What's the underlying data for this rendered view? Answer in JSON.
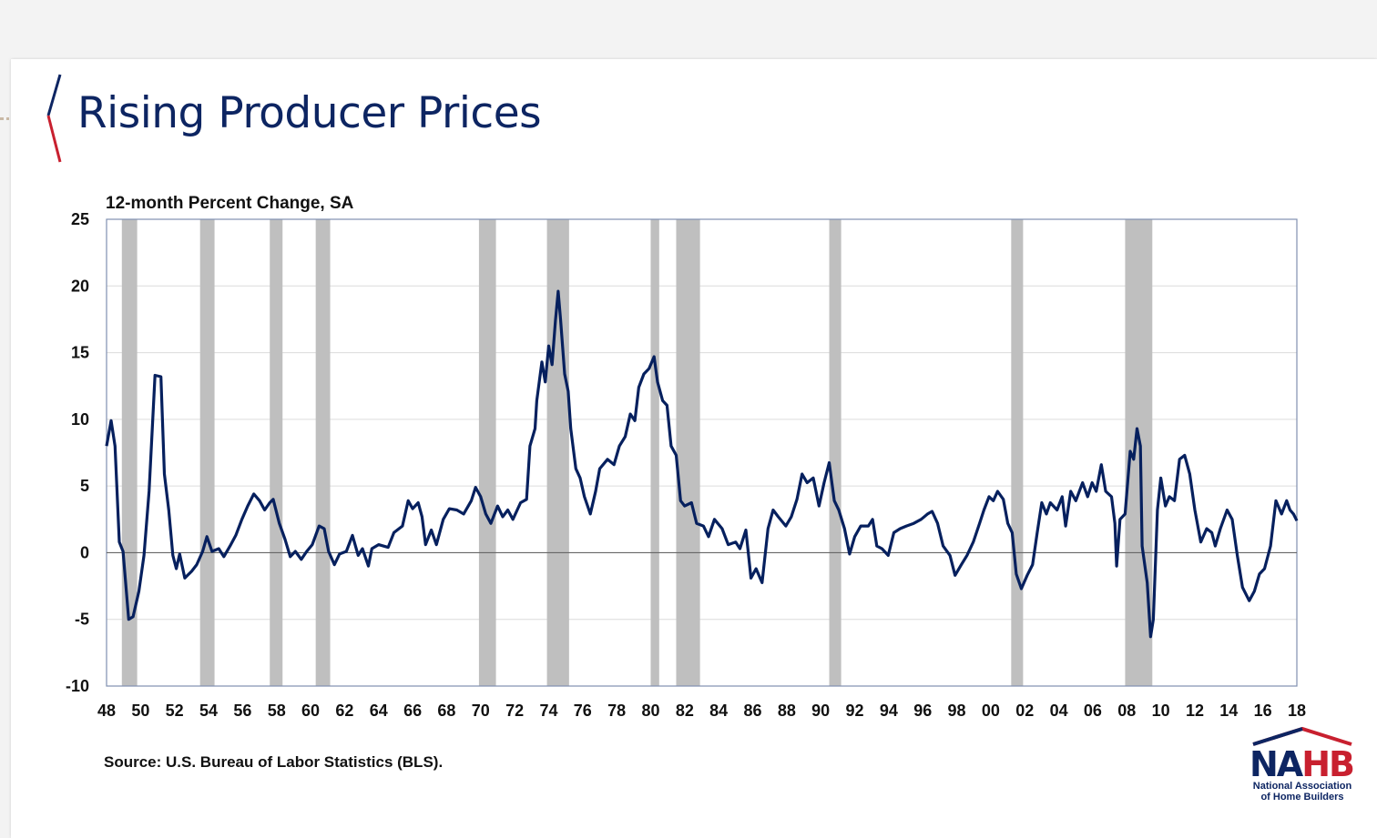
{
  "slide": {
    "title": "Rising Producer Prices",
    "source": "Source: U.S. Bureau of Labor Statistics (BLS).",
    "logo": {
      "wordmark": "NAHB",
      "name_line1": "National Association",
      "name_line2": "of Home Builders"
    }
  },
  "colors": {
    "title": "#0d2562",
    "series": "#06205e",
    "recession": "#bfbfbf",
    "accent_red": "#c8202f"
  },
  "chart_data": {
    "type": "line",
    "title": "",
    "ylabel": "12-month Percent Change, SA",
    "xlabel": "",
    "ylim": [
      -10,
      25
    ],
    "xlim": [
      1948,
      2018
    ],
    "grid": true,
    "yticks": [
      "25",
      "20",
      "15",
      "10",
      "5",
      "0",
      "-5",
      "-10"
    ],
    "ytick_values": [
      25,
      20,
      15,
      10,
      5,
      0,
      -5,
      -10
    ],
    "xticks": [
      "48",
      "50",
      "52",
      "54",
      "56",
      "58",
      "60",
      "62",
      "64",
      "66",
      "68",
      "70",
      "72",
      "74",
      "76",
      "78",
      "80",
      "82",
      "84",
      "86",
      "88",
      "90",
      "92",
      "94",
      "96",
      "98",
      "00",
      "02",
      "04",
      "06",
      "08",
      "10",
      "12",
      "14",
      "16",
      "18"
    ],
    "recession_shading": [
      [
        1948.9,
        1949.8
      ],
      [
        1953.5,
        1954.35
      ],
      [
        1957.6,
        1958.35
      ],
      [
        1960.3,
        1961.15
      ],
      [
        1969.9,
        1970.9
      ],
      [
        1973.9,
        1975.2
      ],
      [
        1980.0,
        1980.5
      ],
      [
        1981.5,
        1982.9
      ],
      [
        1990.5,
        1991.2
      ],
      [
        2001.2,
        2001.9
      ],
      [
        2007.9,
        2009.5
      ]
    ],
    "series": [
      {
        "points": [
          [
            1948.0,
            8.0
          ],
          [
            1948.27,
            9.9
          ],
          [
            1948.5,
            8.0
          ],
          [
            1948.75,
            0.8
          ],
          [
            1948.97,
            0.1
          ],
          [
            1949.3,
            -5.0
          ],
          [
            1949.56,
            -4.8
          ],
          [
            1949.9,
            -2.9
          ],
          [
            1950.2,
            -0.2
          ],
          [
            1950.5,
            4.6
          ],
          [
            1950.85,
            13.3
          ],
          [
            1951.2,
            13.2
          ],
          [
            1951.4,
            5.9
          ],
          [
            1951.66,
            3.2
          ],
          [
            1951.9,
            -0.2
          ],
          [
            1952.1,
            -1.2
          ],
          [
            1952.3,
            -0.1
          ],
          [
            1952.6,
            -1.9
          ],
          [
            1953.0,
            -1.4
          ],
          [
            1953.3,
            -0.9
          ],
          [
            1953.65,
            0.1
          ],
          [
            1953.9,
            1.2
          ],
          [
            1954.2,
            0.1
          ],
          [
            1954.6,
            0.3
          ],
          [
            1954.9,
            -0.3
          ],
          [
            1955.26,
            0.5
          ],
          [
            1955.6,
            1.3
          ],
          [
            1955.96,
            2.5
          ],
          [
            1956.3,
            3.5
          ],
          [
            1956.66,
            4.4
          ],
          [
            1957.0,
            3.9
          ],
          [
            1957.3,
            3.2
          ],
          [
            1957.6,
            3.75
          ],
          [
            1957.8,
            4.0
          ],
          [
            1958.16,
            2.2
          ],
          [
            1958.5,
            1.0
          ],
          [
            1958.8,
            -0.3
          ],
          [
            1959.1,
            0.1
          ],
          [
            1959.45,
            -0.5
          ],
          [
            1959.77,
            0.1
          ],
          [
            1960.1,
            0.6
          ],
          [
            1960.5,
            2.0
          ],
          [
            1960.8,
            1.8
          ],
          [
            1961.06,
            0.1
          ],
          [
            1961.4,
            -0.9
          ],
          [
            1961.7,
            -0.1
          ],
          [
            1962.1,
            0.1
          ],
          [
            1962.46,
            1.3
          ],
          [
            1962.8,
            -0.2
          ],
          [
            1963.05,
            0.3
          ],
          [
            1963.4,
            -1.0
          ],
          [
            1963.6,
            0.3
          ],
          [
            1964.0,
            0.6
          ],
          [
            1964.56,
            0.4
          ],
          [
            1964.9,
            1.5
          ],
          [
            1965.4,
            2.0
          ],
          [
            1965.74,
            3.9
          ],
          [
            1966.0,
            3.3
          ],
          [
            1966.33,
            3.75
          ],
          [
            1966.55,
            2.7
          ],
          [
            1966.76,
            0.6
          ],
          [
            1967.1,
            1.7
          ],
          [
            1967.4,
            0.6
          ],
          [
            1967.8,
            2.5
          ],
          [
            1968.16,
            3.3
          ],
          [
            1968.6,
            3.2
          ],
          [
            1969.0,
            2.9
          ],
          [
            1969.45,
            3.9
          ],
          [
            1969.7,
            4.9
          ],
          [
            1970.0,
            4.2
          ],
          [
            1970.3,
            2.9
          ],
          [
            1970.6,
            2.2
          ],
          [
            1971.0,
            3.5
          ],
          [
            1971.3,
            2.7
          ],
          [
            1971.6,
            3.2
          ],
          [
            1971.9,
            2.5
          ],
          [
            1972.35,
            3.75
          ],
          [
            1972.7,
            4.0
          ],
          [
            1972.9,
            8.0
          ],
          [
            1973.2,
            9.3
          ],
          [
            1973.3,
            11.4
          ],
          [
            1973.6,
            14.3
          ],
          [
            1973.8,
            12.8
          ],
          [
            1974.0,
            15.5
          ],
          [
            1974.2,
            14.1
          ],
          [
            1974.4,
            17.4
          ],
          [
            1974.56,
            19.6
          ],
          [
            1974.7,
            17.5
          ],
          [
            1974.94,
            13.4
          ],
          [
            1975.15,
            12.1
          ],
          [
            1975.3,
            9.3
          ],
          [
            1975.6,
            6.3
          ],
          [
            1975.85,
            5.6
          ],
          [
            1976.1,
            4.2
          ],
          [
            1976.45,
            2.9
          ],
          [
            1976.76,
            4.6
          ],
          [
            1977.0,
            6.3
          ],
          [
            1977.46,
            7.0
          ],
          [
            1977.84,
            6.6
          ],
          [
            1978.16,
            8.0
          ],
          [
            1978.5,
            8.7
          ],
          [
            1978.8,
            10.4
          ],
          [
            1979.07,
            9.9
          ],
          [
            1979.3,
            12.4
          ],
          [
            1979.6,
            13.4
          ],
          [
            1979.9,
            13.8
          ],
          [
            1980.2,
            14.7
          ],
          [
            1980.4,
            12.8
          ],
          [
            1980.7,
            11.4
          ],
          [
            1980.96,
            11.05
          ],
          [
            1981.2,
            8.0
          ],
          [
            1981.5,
            7.3
          ],
          [
            1981.76,
            3.9
          ],
          [
            1982.0,
            3.5
          ],
          [
            1982.4,
            3.75
          ],
          [
            1982.7,
            2.2
          ],
          [
            1983.1,
            2.0
          ],
          [
            1983.4,
            1.2
          ],
          [
            1983.75,
            2.5
          ],
          [
            1984.2,
            1.8
          ],
          [
            1984.56,
            0.6
          ],
          [
            1985.0,
            0.8
          ],
          [
            1985.25,
            0.3
          ],
          [
            1985.6,
            1.7
          ],
          [
            1985.9,
            -1.9
          ],
          [
            1986.2,
            -1.2
          ],
          [
            1986.55,
            -2.25
          ],
          [
            1986.9,
            1.8
          ],
          [
            1987.2,
            3.2
          ],
          [
            1987.5,
            2.7
          ],
          [
            1987.95,
            2.0
          ],
          [
            1988.27,
            2.7
          ],
          [
            1988.6,
            4.0
          ],
          [
            1988.9,
            5.9
          ],
          [
            1989.2,
            5.25
          ],
          [
            1989.56,
            5.6
          ],
          [
            1989.9,
            3.5
          ],
          [
            1990.2,
            5.25
          ],
          [
            1990.5,
            6.75
          ],
          [
            1990.8,
            3.9
          ],
          [
            1991.06,
            3.2
          ],
          [
            1991.4,
            1.8
          ],
          [
            1991.7,
            -0.1
          ],
          [
            1992.0,
            1.2
          ],
          [
            1992.35,
            2.0
          ],
          [
            1992.8,
            2.0
          ],
          [
            1993.05,
            2.5
          ],
          [
            1993.3,
            0.5
          ],
          [
            1993.6,
            0.3
          ],
          [
            1993.97,
            -0.2
          ],
          [
            1994.3,
            1.5
          ],
          [
            1994.67,
            1.8
          ],
          [
            1995.04,
            2.0
          ],
          [
            1995.47,
            2.2
          ],
          [
            1995.9,
            2.5
          ],
          [
            1996.28,
            2.9
          ],
          [
            1996.55,
            3.1
          ],
          [
            1996.87,
            2.2
          ],
          [
            1997.2,
            0.5
          ],
          [
            1997.6,
            -0.2
          ],
          [
            1997.9,
            -1.7
          ],
          [
            1998.27,
            -0.9
          ],
          [
            1998.6,
            -0.2
          ],
          [
            1998.97,
            0.8
          ],
          [
            1999.34,
            2.2
          ],
          [
            1999.6,
            3.2
          ],
          [
            1999.9,
            4.2
          ],
          [
            2000.15,
            3.9
          ],
          [
            2000.4,
            4.6
          ],
          [
            2000.74,
            4.0
          ],
          [
            2001.0,
            2.2
          ],
          [
            2001.26,
            1.5
          ],
          [
            2001.5,
            -1.6
          ],
          [
            2001.8,
            -2.7
          ],
          [
            2002.14,
            -1.7
          ],
          [
            2002.46,
            -0.9
          ],
          [
            2002.73,
            1.5
          ],
          [
            2003.0,
            3.75
          ],
          [
            2003.27,
            2.9
          ],
          [
            2003.5,
            3.75
          ],
          [
            2003.9,
            3.2
          ],
          [
            2004.2,
            4.2
          ],
          [
            2004.4,
            2.0
          ],
          [
            2004.7,
            4.6
          ],
          [
            2005.0,
            3.9
          ],
          [
            2005.4,
            5.25
          ],
          [
            2005.7,
            4.2
          ],
          [
            2005.96,
            5.25
          ],
          [
            2006.2,
            4.6
          ],
          [
            2006.5,
            6.6
          ],
          [
            2006.76,
            4.6
          ],
          [
            2007.1,
            4.2
          ],
          [
            2007.3,
            2.2
          ],
          [
            2007.4,
            -1.0
          ],
          [
            2007.6,
            2.5
          ],
          [
            2007.9,
            2.9
          ],
          [
            2008.2,
            7.6
          ],
          [
            2008.4,
            7.0
          ],
          [
            2008.6,
            9.3
          ],
          [
            2008.8,
            8.0
          ],
          [
            2008.9,
            0.5
          ],
          [
            2009.2,
            -2.25
          ],
          [
            2009.4,
            -6.3
          ],
          [
            2009.56,
            -5.0
          ],
          [
            2009.8,
            3.2
          ],
          [
            2010.0,
            5.6
          ],
          [
            2010.27,
            3.5
          ],
          [
            2010.5,
            4.2
          ],
          [
            2010.8,
            3.9
          ],
          [
            2011.1,
            7.0
          ],
          [
            2011.4,
            7.3
          ],
          [
            2011.7,
            5.9
          ],
          [
            2012.0,
            3.2
          ],
          [
            2012.35,
            0.8
          ],
          [
            2012.7,
            1.8
          ],
          [
            2013.0,
            1.5
          ],
          [
            2013.2,
            0.5
          ],
          [
            2013.5,
            1.8
          ],
          [
            2013.9,
            3.2
          ],
          [
            2014.2,
            2.5
          ],
          [
            2014.5,
            -0.2
          ],
          [
            2014.8,
            -2.6
          ],
          [
            2015.2,
            -3.6
          ],
          [
            2015.5,
            -2.9
          ],
          [
            2015.8,
            -1.6
          ],
          [
            2016.1,
            -1.2
          ],
          [
            2016.45,
            0.5
          ],
          [
            2016.77,
            3.9
          ],
          [
            2017.1,
            2.9
          ],
          [
            2017.4,
            3.9
          ],
          [
            2017.6,
            3.2
          ],
          [
            2017.8,
            2.9
          ],
          [
            2018.0,
            2.4
          ]
        ]
      }
    ]
  }
}
